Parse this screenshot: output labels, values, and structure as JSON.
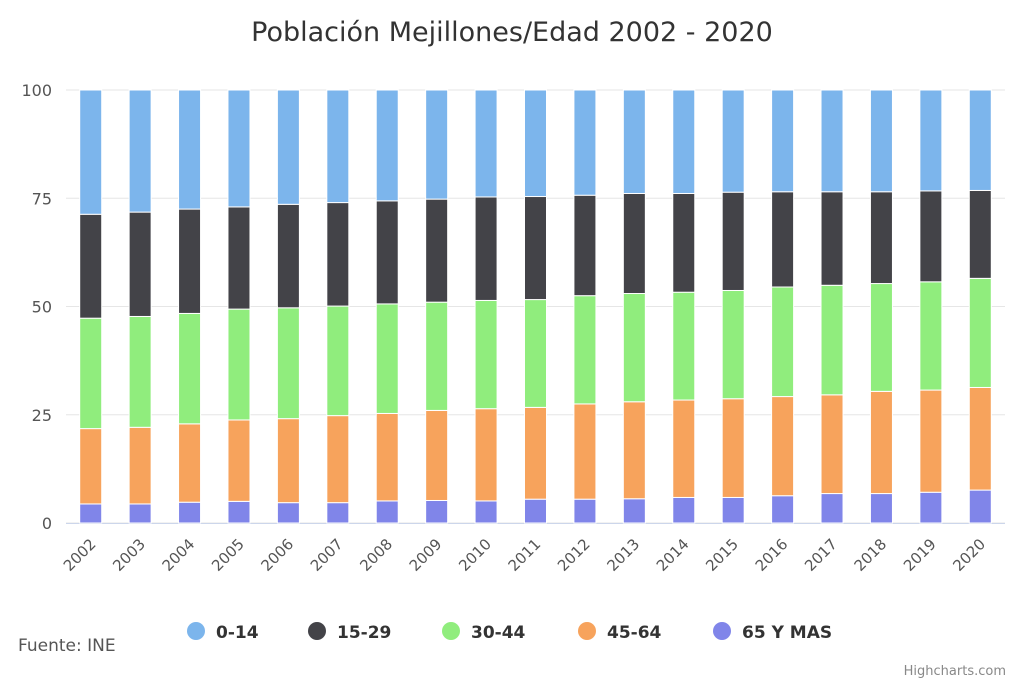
{
  "chart_data": {
    "type": "bar",
    "stacked": true,
    "title": "Población Mejillones/Edad 2002 - 2020",
    "categories": [
      "2002",
      "2003",
      "2004",
      "2005",
      "2006",
      "2007",
      "2008",
      "2009",
      "2010",
      "2011",
      "2012",
      "2013",
      "2014",
      "2015",
      "2016",
      "2017",
      "2018",
      "2019",
      "2020"
    ],
    "ylim": [
      0,
      100
    ],
    "yticks": [
      0,
      25,
      50,
      75,
      100
    ],
    "grid": true,
    "legend_position": "bottom",
    "series": [
      {
        "name": "0-14",
        "color": "#7cb5ec",
        "values": [
          28.7,
          28.2,
          27.5,
          27.0,
          26.4,
          26.0,
          25.6,
          25.2,
          24.7,
          24.6,
          24.3,
          23.9,
          23.9,
          23.6,
          23.5,
          23.5,
          23.5,
          23.3,
          23.2
        ]
      },
      {
        "name": "15-29",
        "color": "#434348",
        "values": [
          24.0,
          24.1,
          24.1,
          23.6,
          23.9,
          23.9,
          23.8,
          23.8,
          23.9,
          23.8,
          23.2,
          23.1,
          22.8,
          22.7,
          22.0,
          21.6,
          21.2,
          21.0,
          20.3
        ]
      },
      {
        "name": "30-44",
        "color": "#90ed7d",
        "values": [
          25.5,
          25.6,
          25.5,
          25.6,
          25.6,
          25.3,
          25.3,
          25.0,
          25.0,
          24.9,
          25.0,
          25.0,
          24.9,
          25.0,
          25.3,
          25.3,
          24.9,
          25.0,
          25.2
        ]
      },
      {
        "name": "45-64",
        "color": "#f7a35c",
        "values": [
          17.4,
          17.7,
          18.1,
          18.8,
          19.4,
          20.1,
          20.2,
          20.8,
          21.3,
          21.2,
          22.0,
          22.4,
          22.5,
          22.8,
          22.9,
          22.8,
          23.6,
          23.6,
          23.7
        ]
      },
      {
        "name": "65 Y MAS",
        "color": "#8085e9",
        "values": [
          4.4,
          4.4,
          4.8,
          5.0,
          4.7,
          4.7,
          5.1,
          5.2,
          5.1,
          5.5,
          5.5,
          5.6,
          5.9,
          5.9,
          6.3,
          6.8,
          6.8,
          7.1,
          7.6
        ]
      }
    ]
  },
  "source_label": "Fuente: INE",
  "credits": "Highcharts.com"
}
